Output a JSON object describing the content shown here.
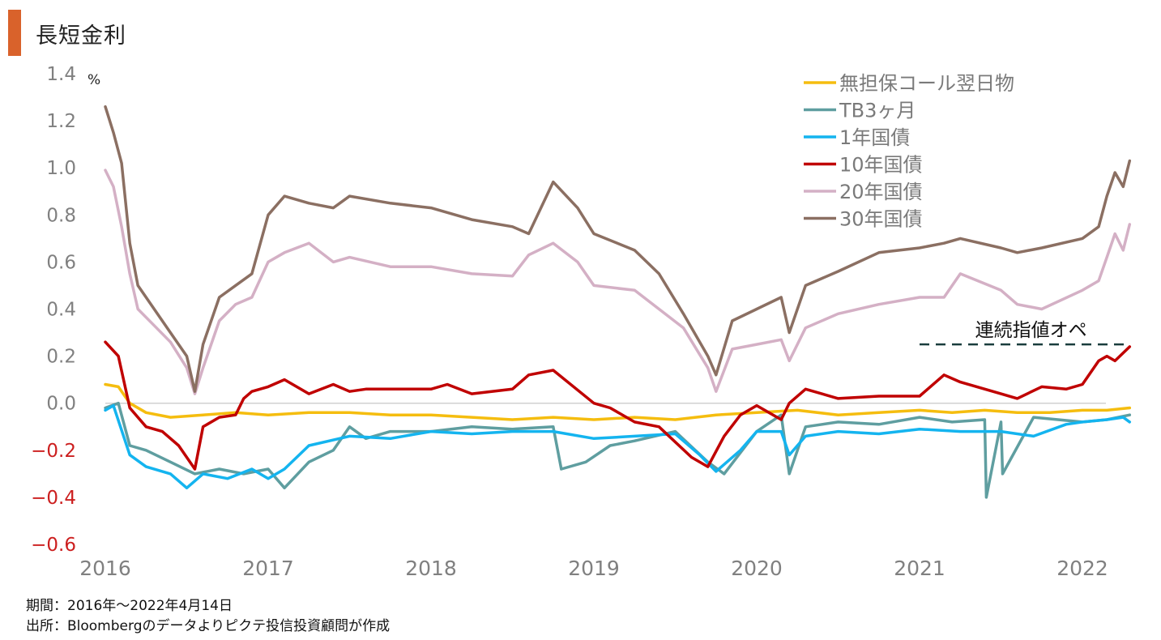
{
  "header": {
    "title": "長短金利",
    "accent_color": "#d9622b"
  },
  "footer": {
    "period": "期間：2016年～2022年4月14日",
    "source": "出所：Bloombergのデータよりピクテ投信投資顧問が作成"
  },
  "chart_data": {
    "type": "line",
    "title": "長短金利",
    "ylabel": "%",
    "xlabel": "",
    "ylim": [
      -0.6,
      1.4
    ],
    "xlim": [
      2016.0,
      2022.29
    ],
    "y_ticks": [
      {
        "value": 1.4,
        "label": "1.4",
        "negative": false
      },
      {
        "value": 1.2,
        "label": "1.2",
        "negative": false
      },
      {
        "value": 1.0,
        "label": "1.0",
        "negative": false
      },
      {
        "value": 0.8,
        "label": "0.8",
        "negative": false
      },
      {
        "value": 0.6,
        "label": "0.6",
        "negative": false
      },
      {
        "value": 0.4,
        "label": "0.4",
        "negative": false
      },
      {
        "value": 0.2,
        "label": "0.2",
        "negative": false
      },
      {
        "value": 0.0,
        "label": "0.0",
        "negative": false
      },
      {
        "value": -0.2,
        "label": "−0.2",
        "negative": true
      },
      {
        "value": -0.4,
        "label": "−0.4",
        "negative": true
      },
      {
        "value": -0.6,
        "label": "−0.6",
        "negative": true
      }
    ],
    "x_ticks": [
      {
        "value": 2016,
        "label": "2016"
      },
      {
        "value": 2017,
        "label": "2017"
      },
      {
        "value": 2018,
        "label": "2018"
      },
      {
        "value": 2019,
        "label": "2019"
      },
      {
        "value": 2020,
        "label": "2020"
      },
      {
        "value": 2021,
        "label": "2021"
      },
      {
        "value": 2022,
        "label": "2022"
      }
    ],
    "grid": false,
    "zero_line": true,
    "legend_position": "top-right",
    "negative_tick_color": "#cc1f1f",
    "annotation": {
      "text": "連続指値オペ",
      "y": 0.25,
      "x_start": 2021.0,
      "x_end": 2022.29,
      "color": "#1a3d3d"
    },
    "series": [
      {
        "name": "無担保コール翌日物",
        "color": "#f5bd0f",
        "x": [
          2016.0,
          2016.08,
          2016.15,
          2016.25,
          2016.4,
          2016.6,
          2016.8,
          2017.0,
          2017.25,
          2017.5,
          2017.75,
          2018.0,
          2018.25,
          2018.5,
          2018.75,
          2019.0,
          2019.25,
          2019.5,
          2019.75,
          2020.0,
          2020.25,
          2020.5,
          2020.75,
          2021.0,
          2021.2,
          2021.4,
          2021.6,
          2021.8,
          2022.0,
          2022.15,
          2022.29
        ],
        "values": [
          0.08,
          0.07,
          0.0,
          -0.04,
          -0.06,
          -0.05,
          -0.04,
          -0.05,
          -0.04,
          -0.04,
          -0.05,
          -0.05,
          -0.06,
          -0.07,
          -0.06,
          -0.07,
          -0.06,
          -0.07,
          -0.05,
          -0.04,
          -0.03,
          -0.05,
          -0.04,
          -0.03,
          -0.04,
          -0.03,
          -0.04,
          -0.04,
          -0.03,
          -0.03,
          -0.02
        ]
      },
      {
        "name": "TB3ヶ月",
        "color": "#5f9ea0",
        "x": [
          2016.0,
          2016.08,
          2016.15,
          2016.25,
          2016.4,
          2016.55,
          2016.7,
          2016.85,
          2017.0,
          2017.1,
          2017.25,
          2017.4,
          2017.5,
          2017.6,
          2017.75,
          2018.0,
          2018.25,
          2018.5,
          2018.75,
          2018.8,
          2018.95,
          2019.1,
          2019.25,
          2019.5,
          2019.7,
          2019.8,
          2020.0,
          2020.15,
          2020.2,
          2020.3,
          2020.5,
          2020.75,
          2021.0,
          2021.2,
          2021.4,
          2021.41,
          2021.5,
          2021.51,
          2021.7,
          2022.0,
          2022.15,
          2022.29
        ],
        "values": [
          -0.02,
          0.0,
          -0.18,
          -0.2,
          -0.25,
          -0.3,
          -0.28,
          -0.3,
          -0.28,
          -0.36,
          -0.25,
          -0.2,
          -0.1,
          -0.15,
          -0.12,
          -0.12,
          -0.1,
          -0.11,
          -0.1,
          -0.28,
          -0.25,
          -0.18,
          -0.16,
          -0.12,
          -0.25,
          -0.3,
          -0.12,
          -0.05,
          -0.3,
          -0.1,
          -0.08,
          -0.09,
          -0.06,
          -0.08,
          -0.07,
          -0.4,
          -0.08,
          -0.3,
          -0.06,
          -0.08,
          -0.07,
          -0.05
        ]
      },
      {
        "name": "1年国債",
        "color": "#14b4ef",
        "x": [
          2016.0,
          2016.05,
          2016.15,
          2016.25,
          2016.4,
          2016.5,
          2016.6,
          2016.75,
          2016.9,
          2017.0,
          2017.1,
          2017.25,
          2017.5,
          2017.75,
          2018.0,
          2018.25,
          2018.5,
          2018.75,
          2019.0,
          2019.25,
          2019.5,
          2019.65,
          2019.75,
          2019.9,
          2020.0,
          2020.15,
          2020.2,
          2020.3,
          2020.5,
          2020.75,
          2021.0,
          2021.25,
          2021.5,
          2021.7,
          2021.9,
          2022.0,
          2022.15,
          2022.25,
          2022.29
        ],
        "values": [
          -0.03,
          -0.01,
          -0.22,
          -0.27,
          -0.3,
          -0.36,
          -0.3,
          -0.32,
          -0.28,
          -0.32,
          -0.28,
          -0.18,
          -0.14,
          -0.15,
          -0.12,
          -0.13,
          -0.12,
          -0.12,
          -0.15,
          -0.14,
          -0.13,
          -0.22,
          -0.29,
          -0.2,
          -0.12,
          -0.12,
          -0.22,
          -0.14,
          -0.12,
          -0.13,
          -0.11,
          -0.12,
          -0.12,
          -0.14,
          -0.09,
          -0.08,
          -0.07,
          -0.06,
          -0.08
        ]
      },
      {
        "name": "10年国債",
        "color": "#c00000",
        "x": [
          2016.0,
          2016.08,
          2016.15,
          2016.25,
          2016.35,
          2016.45,
          2016.55,
          2016.6,
          2016.7,
          2016.8,
          2016.85,
          2016.9,
          2017.0,
          2017.1,
          2017.25,
          2017.4,
          2017.5,
          2017.6,
          2017.75,
          2018.0,
          2018.1,
          2018.25,
          2018.5,
          2018.6,
          2018.75,
          2019.0,
          2019.1,
          2019.25,
          2019.4,
          2019.6,
          2019.7,
          2019.8,
          2019.9,
          2020.0,
          2020.15,
          2020.2,
          2020.3,
          2020.5,
          2020.75,
          2021.0,
          2021.15,
          2021.25,
          2021.5,
          2021.6,
          2021.75,
          2021.9,
          2022.0,
          2022.1,
          2022.15,
          2022.2,
          2022.29
        ],
        "values": [
          0.26,
          0.2,
          -0.02,
          -0.1,
          -0.12,
          -0.18,
          -0.28,
          -0.1,
          -0.06,
          -0.05,
          0.02,
          0.05,
          0.07,
          0.1,
          0.04,
          0.08,
          0.05,
          0.06,
          0.06,
          0.06,
          0.08,
          0.04,
          0.06,
          0.12,
          0.14,
          0.0,
          -0.02,
          -0.08,
          -0.1,
          -0.23,
          -0.27,
          -0.14,
          -0.05,
          -0.01,
          -0.07,
          -0.0,
          0.06,
          0.02,
          0.03,
          0.03,
          0.12,
          0.09,
          0.04,
          0.02,
          0.07,
          0.06,
          0.08,
          0.18,
          0.2,
          0.18,
          0.24
        ]
      },
      {
        "name": "20年国債",
        "color": "#d4b0c5",
        "x": [
          2016.0,
          2016.05,
          2016.1,
          2016.15,
          2016.2,
          2016.3,
          2016.4,
          2016.5,
          2016.55,
          2016.6,
          2016.7,
          2016.8,
          2016.9,
          2017.0,
          2017.1,
          2017.25,
          2017.4,
          2017.5,
          2017.75,
          2018.0,
          2018.25,
          2018.5,
          2018.6,
          2018.75,
          2018.9,
          2019.0,
          2019.25,
          2019.4,
          2019.55,
          2019.7,
          2019.75,
          2019.85,
          2020.0,
          2020.15,
          2020.2,
          2020.3,
          2020.5,
          2020.75,
          2021.0,
          2021.15,
          2021.25,
          2021.5,
          2021.6,
          2021.75,
          2022.0,
          2022.1,
          2022.15,
          2022.2,
          2022.25,
          2022.29
        ],
        "values": [
          0.99,
          0.92,
          0.75,
          0.55,
          0.4,
          0.33,
          0.26,
          0.15,
          0.04,
          0.15,
          0.35,
          0.42,
          0.45,
          0.6,
          0.64,
          0.68,
          0.6,
          0.62,
          0.58,
          0.58,
          0.55,
          0.54,
          0.63,
          0.68,
          0.6,
          0.5,
          0.48,
          0.4,
          0.32,
          0.15,
          0.05,
          0.23,
          0.25,
          0.27,
          0.18,
          0.32,
          0.38,
          0.42,
          0.45,
          0.45,
          0.55,
          0.48,
          0.42,
          0.4,
          0.48,
          0.52,
          0.62,
          0.72,
          0.65,
          0.76
        ]
      },
      {
        "name": "30年国債",
        "color": "#8b6f62",
        "x": [
          2016.0,
          2016.05,
          2016.1,
          2016.15,
          2016.2,
          2016.3,
          2016.4,
          2016.5,
          2016.55,
          2016.6,
          2016.7,
          2016.8,
          2016.9,
          2017.0,
          2017.1,
          2017.25,
          2017.4,
          2017.5,
          2017.75,
          2018.0,
          2018.25,
          2018.5,
          2018.6,
          2018.75,
          2018.9,
          2019.0,
          2019.25,
          2019.4,
          2019.55,
          2019.7,
          2019.75,
          2019.85,
          2020.0,
          2020.15,
          2020.2,
          2020.3,
          2020.5,
          2020.75,
          2021.0,
          2021.15,
          2021.25,
          2021.5,
          2021.6,
          2021.75,
          2022.0,
          2022.1,
          2022.15,
          2022.2,
          2022.25,
          2022.29
        ],
        "values": [
          1.26,
          1.15,
          1.02,
          0.68,
          0.5,
          0.4,
          0.3,
          0.2,
          0.05,
          0.25,
          0.45,
          0.5,
          0.55,
          0.8,
          0.88,
          0.85,
          0.83,
          0.88,
          0.85,
          0.83,
          0.78,
          0.75,
          0.72,
          0.94,
          0.83,
          0.72,
          0.65,
          0.55,
          0.38,
          0.2,
          0.12,
          0.35,
          0.4,
          0.45,
          0.3,
          0.5,
          0.56,
          0.64,
          0.66,
          0.68,
          0.7,
          0.66,
          0.64,
          0.66,
          0.7,
          0.75,
          0.88,
          0.98,
          0.92,
          1.03
        ]
      }
    ]
  }
}
